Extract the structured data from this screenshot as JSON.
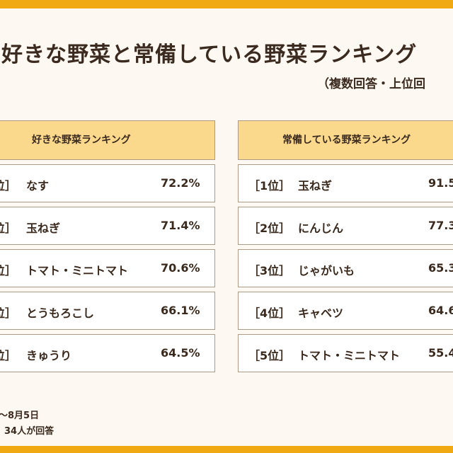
{
  "title": "好きな野菜と常備している野菜ランキング",
  "subtitle": "（複数回答・上位回",
  "chart_data": [
    {
      "type": "table",
      "title": "好きな野菜ランキング",
      "rows": [
        {
          "rank": "位］",
          "item": "なす",
          "value": "72.2%"
        },
        {
          "rank": "位］",
          "item": "玉ねぎ",
          "value": "71.4%"
        },
        {
          "rank": "位］",
          "item": "トマト・ミニトマト",
          "value": "70.6%"
        },
        {
          "rank": "位］",
          "item": "とうもろこし",
          "value": "66.1%"
        },
        {
          "rank": "位］",
          "item": "きゅうり",
          "value": "64.5%"
        }
      ]
    },
    {
      "type": "table",
      "title": "常備している野菜ランキング",
      "rows": [
        {
          "rank": "［1位］",
          "item": "玉ねぎ",
          "value": "91.5"
        },
        {
          "rank": "［2位］",
          "item": "にんじん",
          "value": "77.3"
        },
        {
          "rank": "［3位］",
          "item": "じゃがいも",
          "value": "65.3"
        },
        {
          "rank": "［4位］",
          "item": "キャベツ",
          "value": "64.6"
        },
        {
          "rank": "［5位］",
          "item": "トマト・ミニトマト",
          "value": "55.4"
        }
      ]
    }
  ],
  "notes": [
    "〜8月5日",
    "34人が回答"
  ],
  "colors": {
    "accent": "#f0a813",
    "header_fill": "#fbd98c",
    "border": "#ad9b86"
  }
}
